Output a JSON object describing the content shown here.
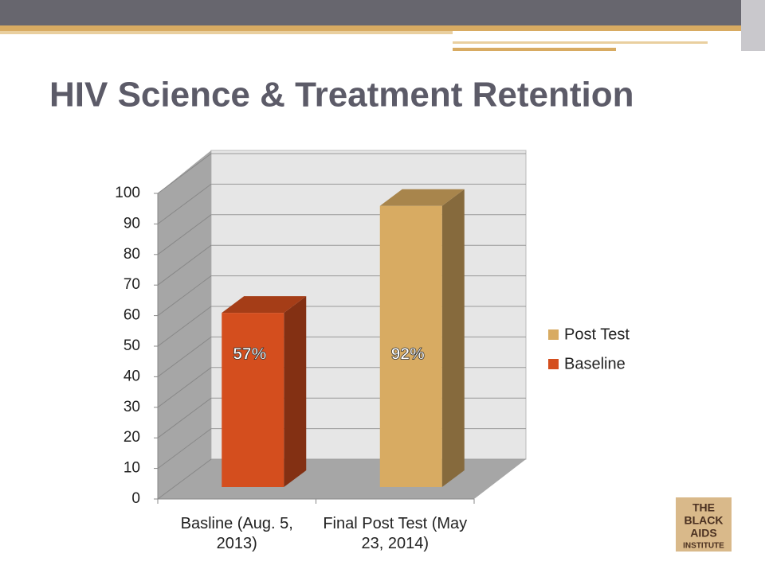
{
  "chart_data": {
    "type": "bar3d",
    "title": "HIV Science & Treatment Retention",
    "categories": [
      "Basline (Aug. 5, 2013)",
      "Final Post Test (May 23, 2014)"
    ],
    "series": [
      {
        "name": "Baseline",
        "color": "#d44e1e",
        "values": [
          57,
          null
        ],
        "value_labels": [
          "57%",
          null
        ]
      },
      {
        "name": "Post Test",
        "color": "#d8ab62",
        "values": [
          null,
          92
        ],
        "value_labels": [
          null,
          "92%"
        ]
      }
    ],
    "ylim": [
      0,
      100
    ],
    "yticks": [
      0,
      10,
      20,
      30,
      40,
      50,
      60,
      70,
      80,
      90,
      100
    ],
    "grid": true,
    "legend": "right"
  },
  "logo": [
    "THE",
    "BLACK",
    "AIDS",
    "INSTITUTE"
  ]
}
